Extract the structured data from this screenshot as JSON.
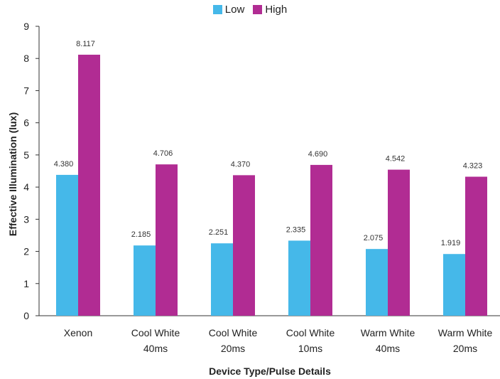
{
  "chart_data": {
    "type": "bar",
    "title": "",
    "xlabel": "Device Type/Pulse Details",
    "ylabel": "Effective Illumination (lux)",
    "ylim": [
      0,
      9
    ],
    "yticks": [
      "0",
      "1",
      "2",
      "3",
      "4",
      "5",
      "6",
      "7",
      "8",
      "9"
    ],
    "categories": [
      [
        "Xenon"
      ],
      [
        "Cool White",
        "40ms"
      ],
      [
        "Cool White",
        "20ms"
      ],
      [
        "Cool White",
        "10ms"
      ],
      [
        "Warm White",
        "40ms"
      ],
      [
        "Warm White",
        "20ms"
      ]
    ],
    "series": [
      {
        "name": "Low",
        "color": "#45b8e9",
        "values": [
          4.38,
          2.185,
          2.251,
          2.335,
          2.075,
          1.919
        ],
        "labels": [
          "4.380",
          "2.185",
          "2.251",
          "2.335",
          "2.075",
          "1.919"
        ]
      },
      {
        "name": "High",
        "color": "#b12c93",
        "values": [
          8.117,
          4.706,
          4.37,
          4.69,
          4.542,
          4.323
        ],
        "labels": [
          "8.117",
          "4.706",
          "4.370",
          "4.690",
          "4.542",
          "4.323"
        ]
      }
    ],
    "grid": false,
    "legend_position": "top-center"
  }
}
